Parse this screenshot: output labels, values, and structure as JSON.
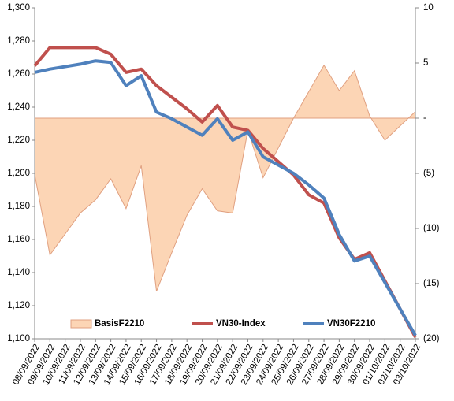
{
  "chart_data": {
    "type": "line",
    "categories": [
      "08/09/2022",
      "09/09/2022",
      "10/09/2022",
      "11/09/2022",
      "12/09/2022",
      "13/09/2022",
      "14/09/2022",
      "15/09/2022",
      "16/09/2022",
      "17/09/2022",
      "18/09/2022",
      "19/09/2022",
      "20/09/2022",
      "21/09/2022",
      "22/09/2022",
      "23/09/2022",
      "24/09/2022",
      "25/09/2022",
      "26/09/2022",
      "27/09/2022",
      "28/09/2022",
      "29/09/2022",
      "30/09/2022",
      "01/10/2022",
      "02/10/2022",
      "03/10/2022"
    ],
    "series": [
      {
        "name": "BasisF2210",
        "type": "area",
        "axis": "y2",
        "color": "#fcd5b5",
        "values": [
          -5.1,
          -12.4,
          -10.5,
          -8.6,
          -7.4,
          -5.5,
          -8.2,
          -4.3,
          -15.7,
          -12.2,
          -8.8,
          -6.4,
          -8.4,
          -8.6,
          -1.1,
          -5.4,
          -2.7,
          0,
          2.4,
          4.8,
          2.5,
          4.3,
          0.2,
          -2.0,
          -0.7,
          0.6
        ]
      },
      {
        "name": "VN30-Index",
        "type": "line",
        "color": "#c0504d",
        "values": [
          1265,
          1276,
          1276,
          1276,
          1276,
          1272,
          1261,
          1263,
          1253,
          1246,
          1239,
          1231,
          1241,
          1228,
          1226,
          1215,
          1207,
          1199,
          1187,
          1182,
          1161,
          1148,
          1152,
          1135,
          1118,
          1101
        ]
      },
      {
        "name": "VN30F2210",
        "type": "line",
        "color": "#4f81bd",
        "values": [
          1261,
          1263,
          1264.5,
          1266,
          1268,
          1267,
          1253,
          1259,
          1237,
          1233,
          1228,
          1223,
          1233,
          1220,
          1225,
          1210,
          1205,
          1200,
          1193,
          1185,
          1163,
          1147,
          1150,
          1134,
          1118,
          1102
        ]
      }
    ],
    "ylim": [
      1100,
      1300
    ],
    "yticks": [
      {
        "value": 1100,
        "label": "1,100"
      },
      {
        "value": 1120,
        "label": "1,120"
      },
      {
        "value": 1140,
        "label": "1,140"
      },
      {
        "value": 1160,
        "label": "1,160"
      },
      {
        "value": 1180,
        "label": "1,180"
      },
      {
        "value": 1200,
        "label": "1,200"
      },
      {
        "value": 1220,
        "label": "1,220"
      },
      {
        "value": 1240,
        "label": "1,240"
      },
      {
        "value": 1260,
        "label": "1,260"
      },
      {
        "value": 1280,
        "label": "1,280"
      },
      {
        "value": 1300,
        "label": "1,300"
      }
    ],
    "y2lim": [
      -20,
      10
    ],
    "y2ticks": [
      {
        "value": -20,
        "label": "(20)"
      },
      {
        "value": -15,
        "label": "(15)"
      },
      {
        "value": -10,
        "label": "(10)"
      },
      {
        "value": -5,
        "label": "(5)"
      },
      {
        "value": 0,
        "label": "-"
      },
      5,
      10
    ],
    "legend": "bottom"
  }
}
